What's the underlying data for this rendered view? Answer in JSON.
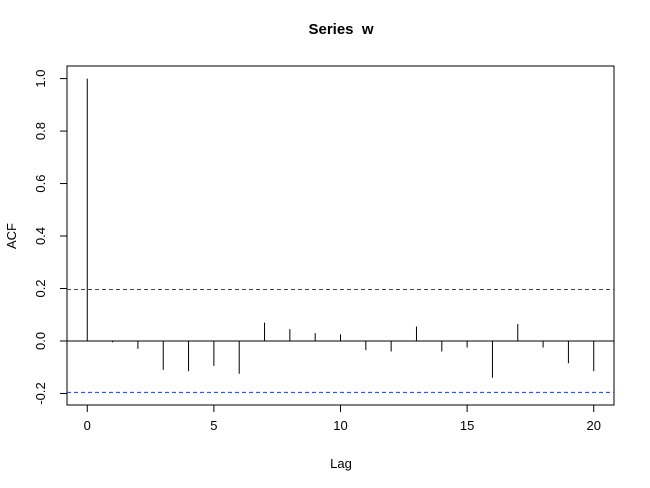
{
  "chart_data": {
    "type": "acf",
    "title": "Series  w",
    "x_label": "Lag",
    "y_label": "ACF",
    "x": [
      0,
      1,
      2,
      3,
      4,
      5,
      6,
      7,
      8,
      9,
      10,
      11,
      12,
      13,
      14,
      15,
      16,
      17,
      18,
      19,
      20
    ],
    "values": [
      1.0,
      -0.005,
      -0.03,
      -0.11,
      -0.115,
      -0.095,
      -0.125,
      0.07,
      0.045,
      0.03,
      0.025,
      -0.035,
      -0.04,
      0.055,
      -0.04,
      -0.025,
      -0.14,
      0.065,
      -0.025,
      -0.085,
      -0.115
    ],
    "color": "#000000",
    "ci_lines": [
      0.196,
      -0.196
    ],
    "ci_color": "#1f3fbf",
    "xlim": [
      -0.8,
      20.8
    ],
    "ylim": [
      -0.244,
      1.048
    ],
    "xticks": [
      0,
      5,
      10,
      15,
      20
    ],
    "yticks": [
      -0.2,
      {
        "value": 0,
        "label": "0.0"
      },
      0.2,
      0.4,
      0.6,
      0.8,
      {
        "value": 1,
        "label": "1.0"
      }
    ]
  }
}
